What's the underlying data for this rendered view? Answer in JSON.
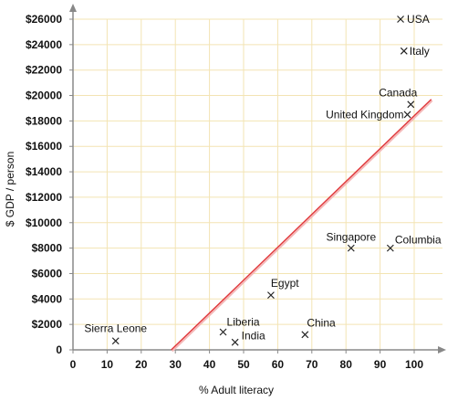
{
  "chart_data": {
    "type": "scatter",
    "xlabel": "% Adult literacy",
    "ylabel": "$ GDP / person",
    "xlim": [
      0,
      105
    ],
    "ylim": [
      0,
      26000
    ],
    "x_ticks": [
      0,
      10,
      20,
      30,
      40,
      50,
      60,
      70,
      80,
      90,
      100
    ],
    "x_tick_labels": [
      "0",
      "10",
      "20",
      "30",
      "40",
      "50",
      "60",
      "70",
      "80",
      "90",
      "100"
    ],
    "y_ticks": [
      0,
      2000,
      4000,
      6000,
      8000,
      10000,
      12000,
      14000,
      16000,
      18000,
      20000,
      22000,
      24000,
      26000
    ],
    "y_tick_labels": [
      "0",
      "$2000",
      "$4000",
      "$6000",
      "$8000",
      "$10000",
      "$12000",
      "$14000",
      "$16000",
      "$18000",
      "$20000",
      "$22000",
      "$24000",
      "$26000"
    ],
    "grid": true,
    "points": [
      {
        "label": "USA",
        "x": 96,
        "y": 26000
      },
      {
        "label": "Italy",
        "x": 97,
        "y": 23500
      },
      {
        "label": "Canada",
        "x": 99,
        "y": 19300
      },
      {
        "label": "United Kingdom",
        "x": 98,
        "y": 18500
      },
      {
        "label": "Singapore",
        "x": 81.5,
        "y": 8000
      },
      {
        "label": "Columbia",
        "x": 93,
        "y": 8000
      },
      {
        "label": "Egypt",
        "x": 58,
        "y": 4300
      },
      {
        "label": "Liberia",
        "x": 44,
        "y": 1400
      },
      {
        "label": "India",
        "x": 47.5,
        "y": 600
      },
      {
        "label": "China",
        "x": 68,
        "y": 1200
      },
      {
        "label": "Sierra Leone",
        "x": 12.5,
        "y": 700
      }
    ],
    "trend_line": {
      "x1": 28.8,
      "y1": 0,
      "x2": 105,
      "y2": 19700
    },
    "colors": {
      "grid": "#f3e4b3",
      "axis": "#888888",
      "trend": "#e0373a",
      "marker": "#222222"
    }
  }
}
